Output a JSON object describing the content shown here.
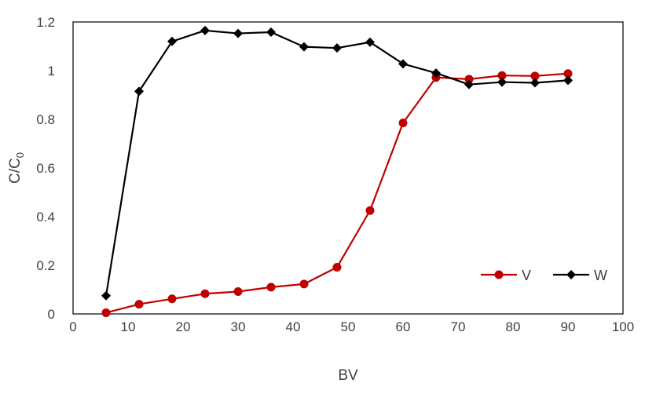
{
  "chart_data": {
    "type": "line",
    "title": "",
    "xlabel": "BV",
    "ylabel_main": "C/C",
    "ylabel_sub": "0",
    "xlim": [
      0,
      100
    ],
    "ylim": [
      0,
      1.2
    ],
    "x_ticks": [
      "0",
      "10",
      "20",
      "30",
      "40",
      "50",
      "60",
      "70",
      "80",
      "90",
      "100"
    ],
    "y_ticks": [
      "0",
      "0.2",
      "0.4",
      "0.6",
      "0.8",
      "1",
      "1.2"
    ],
    "grid": false,
    "legend_position": "bottom-right",
    "series": [
      {
        "name": "V",
        "color": "#C00000",
        "marker": "circle",
        "x": [
          6,
          12,
          18,
          24,
          30,
          36,
          42,
          48,
          54,
          60,
          66,
          72,
          78,
          84,
          90
        ],
        "y": [
          0.005,
          0.04,
          0.062,
          0.083,
          0.092,
          0.11,
          0.123,
          0.192,
          0.425,
          0.785,
          0.972,
          0.965,
          0.98,
          0.978,
          0.988
        ]
      },
      {
        "name": "W",
        "color": "#000000",
        "marker": "diamond",
        "x": [
          6,
          12,
          18,
          24,
          30,
          36,
          42,
          48,
          54,
          60,
          66,
          72,
          78,
          84,
          90
        ],
        "y": [
          0.075,
          0.915,
          1.12,
          1.165,
          1.153,
          1.158,
          1.098,
          1.093,
          1.117,
          1.028,
          0.99,
          0.943,
          0.953,
          0.95,
          0.96
        ]
      }
    ]
  }
}
